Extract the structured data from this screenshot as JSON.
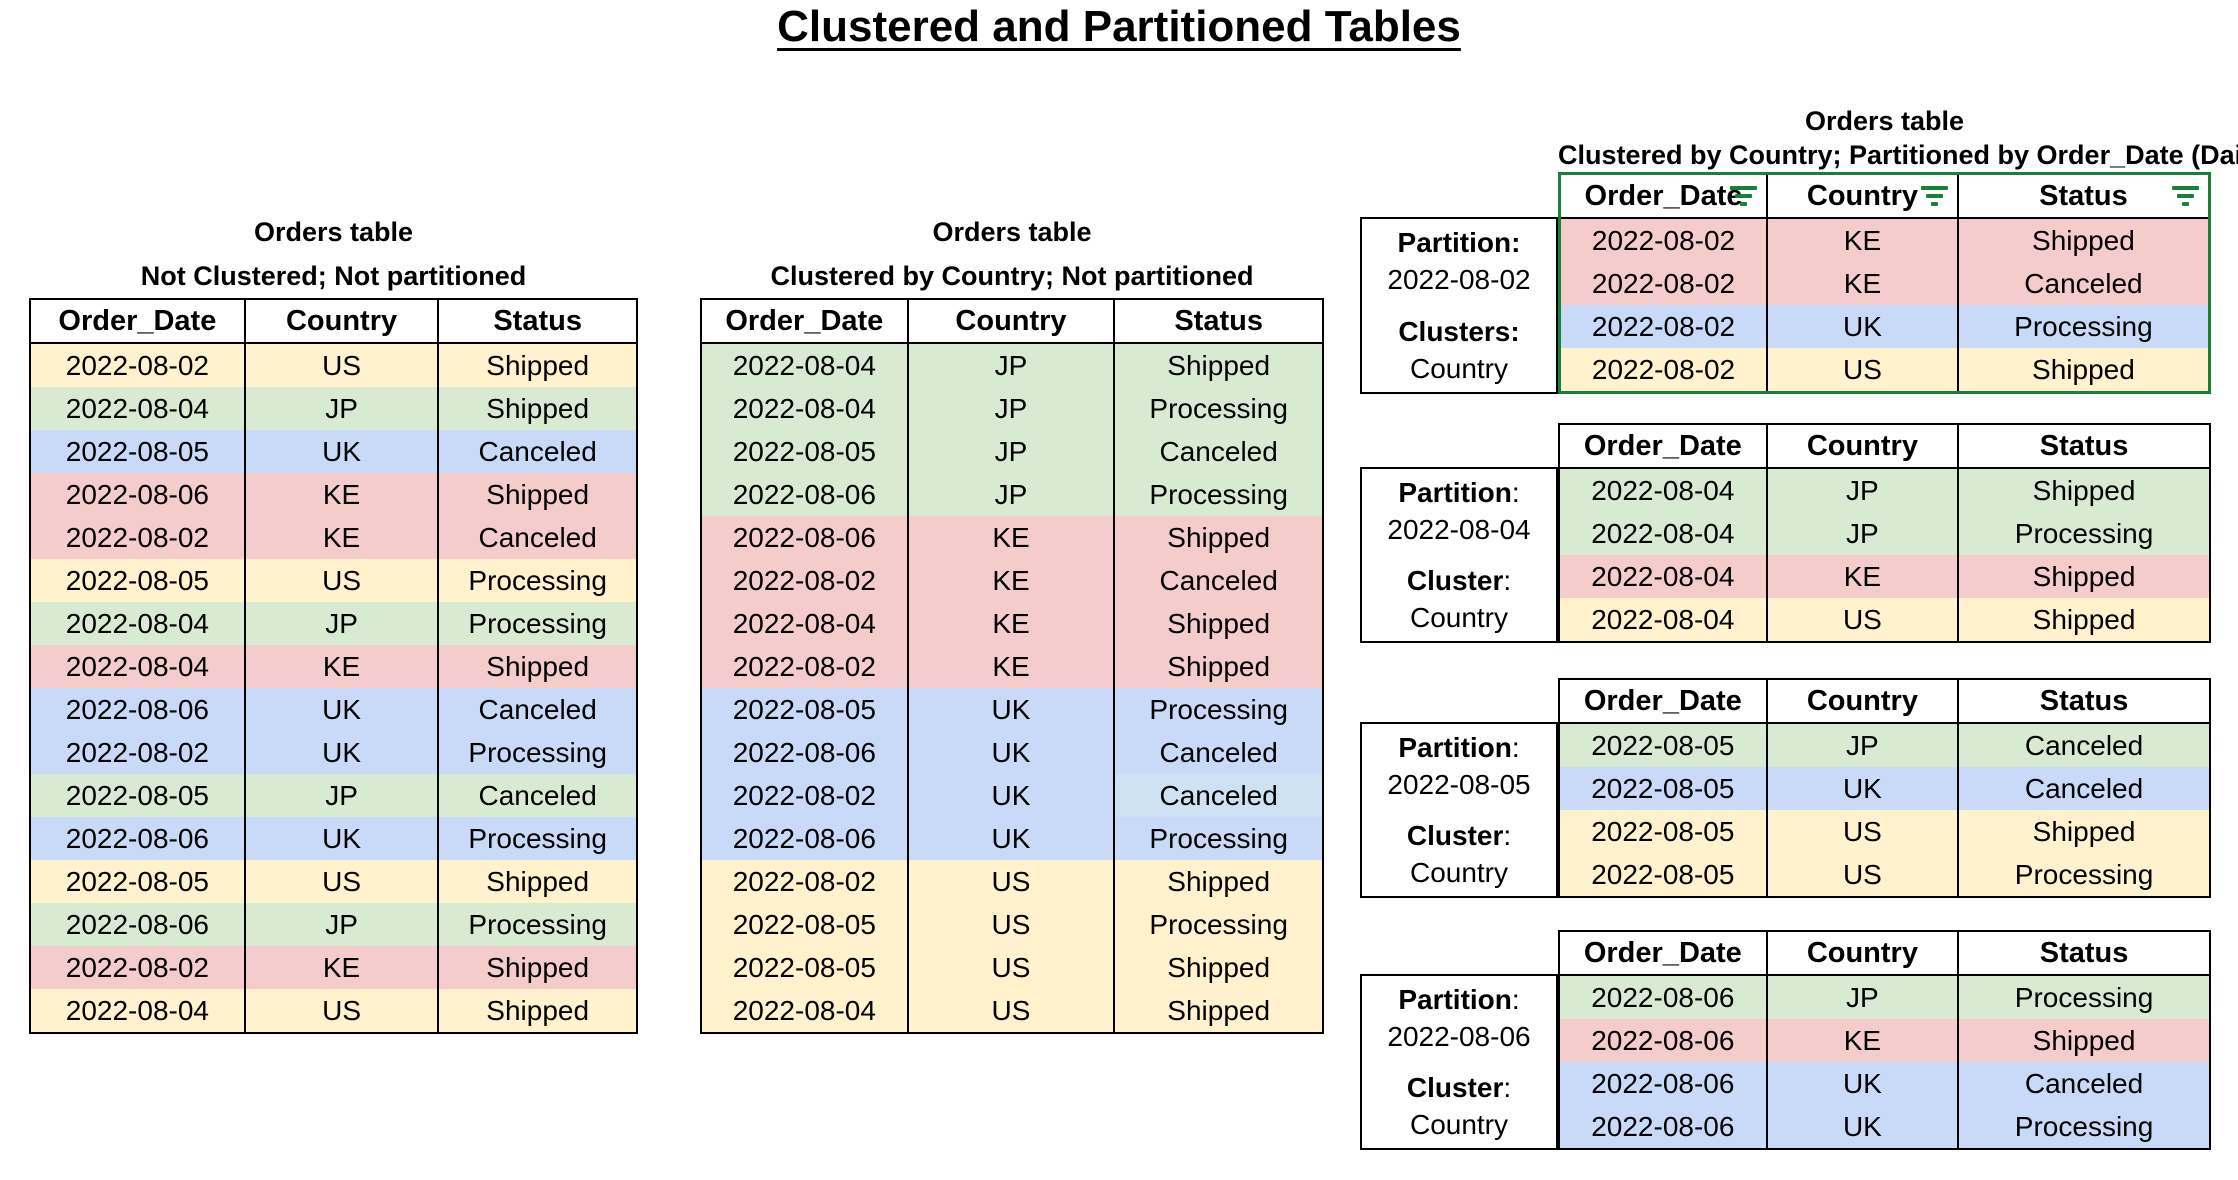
{
  "page_title": "Clustered and Partitioned Tables",
  "colors": {
    "yellow": "#fff2cc",
    "green": "#d9ead3",
    "blue": "#c9daf8",
    "red": "#f4cccc",
    "lightblue": "#cfe2f3",
    "filter_green": "#188038",
    "border_black": "#000000"
  },
  "headers": [
    "Order_Date",
    "Country",
    "Status"
  ],
  "left_table": {
    "title": "Orders table",
    "subtitle": "Not Clustered; Not partitioned",
    "rows": [
      [
        "2022-08-02",
        "US",
        "Shipped",
        "yellow"
      ],
      [
        "2022-08-04",
        "JP",
        "Shipped",
        "green"
      ],
      [
        "2022-08-05",
        "UK",
        "Canceled",
        "blue"
      ],
      [
        "2022-08-06",
        "KE",
        "Shipped",
        "red"
      ],
      [
        "2022-08-02",
        "KE",
        "Canceled",
        "red"
      ],
      [
        "2022-08-05",
        "US",
        "Processing",
        "yellow"
      ],
      [
        "2022-08-04",
        "JP",
        "Processing",
        "green"
      ],
      [
        "2022-08-04",
        "KE",
        "Shipped",
        "red"
      ],
      [
        "2022-08-06",
        "UK",
        "Canceled",
        "blue"
      ],
      [
        "2022-08-02",
        "UK",
        "Processing",
        "blue"
      ],
      [
        "2022-08-05",
        "JP",
        "Canceled",
        "green"
      ],
      [
        "2022-08-06",
        "UK",
        "Processing",
        "blue"
      ],
      [
        "2022-08-05",
        "US",
        "Shipped",
        "yellow"
      ],
      [
        "2022-08-06",
        "JP",
        "Processing",
        "green"
      ],
      [
        "2022-08-02",
        "KE",
        "Shipped",
        "red"
      ],
      [
        "2022-08-04",
        "US",
        "Shipped",
        "yellow"
      ]
    ]
  },
  "middle_table": {
    "title": "Orders table",
    "subtitle": "Clustered by Country; Not partitioned",
    "rows": [
      [
        "2022-08-04",
        "JP",
        "Shipped",
        "green"
      ],
      [
        "2022-08-04",
        "JP",
        "Processing",
        "green"
      ],
      [
        "2022-08-05",
        "JP",
        "Canceled",
        "green"
      ],
      [
        "2022-08-06",
        "JP",
        "Processing",
        "green"
      ],
      [
        "2022-08-06",
        "KE",
        "Shipped",
        "red"
      ],
      [
        "2022-08-02",
        "KE",
        "Canceled",
        "red"
      ],
      [
        "2022-08-04",
        "KE",
        "Shipped",
        "red"
      ],
      [
        "2022-08-02",
        "KE",
        "Shipped",
        "red"
      ],
      [
        "2022-08-05",
        "UK",
        "Processing",
        "blue"
      ],
      [
        "2022-08-06",
        "UK",
        "Canceled",
        "blue"
      ],
      [
        "2022-08-02",
        "UK",
        "Canceled",
        "blue",
        "lightblue"
      ],
      [
        "2022-08-06",
        "UK",
        "Processing",
        "blue"
      ],
      [
        "2022-08-02",
        "US",
        "Shipped",
        "yellow"
      ],
      [
        "2022-08-05",
        "US",
        "Processing",
        "yellow"
      ],
      [
        "2022-08-05",
        "US",
        "Shipped",
        "yellow"
      ],
      [
        "2022-08-04",
        "US",
        "Shipped",
        "yellow"
      ]
    ]
  },
  "right_section": {
    "title": "Orders table",
    "subtitle": "Clustered by Country; Partitioned by Order_Date (Daily)",
    "partitions": [
      {
        "partition_label": "Partition:",
        "partition_label_suffix": "",
        "partition_value": "2022-08-02",
        "cluster_label": "Clusters:",
        "cluster_label_suffix": "",
        "cluster_value": "Country",
        "filtered": true,
        "rows": [
          [
            "2022-08-02",
            "KE",
            "Shipped",
            "red"
          ],
          [
            "2022-08-02",
            "KE",
            "Canceled",
            "red"
          ],
          [
            "2022-08-02",
            "UK",
            "Processing",
            "blue"
          ],
          [
            "2022-08-02",
            "US",
            "Shipped",
            "yellow"
          ]
        ]
      },
      {
        "partition_label": "Partition",
        "partition_label_suffix": ":",
        "partition_value": "2022-08-04",
        "cluster_label": "Cluster",
        "cluster_label_suffix": ":",
        "cluster_value": "Country",
        "filtered": false,
        "rows": [
          [
            "2022-08-04",
            "JP",
            "Shipped",
            "green"
          ],
          [
            "2022-08-04",
            "JP",
            "Processing",
            "green"
          ],
          [
            "2022-08-04",
            "KE",
            "Shipped",
            "red"
          ],
          [
            "2022-08-04",
            "US",
            "Shipped",
            "yellow"
          ]
        ]
      },
      {
        "partition_label": "Partition",
        "partition_label_suffix": ":",
        "partition_value": "2022-08-05",
        "cluster_label": "Cluster",
        "cluster_label_suffix": ":",
        "cluster_value": "Country",
        "filtered": false,
        "rows": [
          [
            "2022-08-05",
            "JP",
            "Canceled",
            "green"
          ],
          [
            "2022-08-05",
            "UK",
            "Canceled",
            "blue"
          ],
          [
            "2022-08-05",
            "US",
            "Shipped",
            "yellow"
          ],
          [
            "2022-08-05",
            "US",
            "Processing",
            "yellow"
          ]
        ]
      },
      {
        "partition_label": "Partition",
        "partition_label_suffix": ":",
        "partition_value": "2022-08-06",
        "cluster_label": "Cluster",
        "cluster_label_suffix": ":",
        "cluster_value": "Country",
        "filtered": false,
        "rows": [
          [
            "2022-08-06",
            "JP",
            "Processing",
            "green"
          ],
          [
            "2022-08-06",
            "KE",
            "Shipped",
            "red"
          ],
          [
            "2022-08-06",
            "UK",
            "Canceled",
            "blue"
          ],
          [
            "2022-08-06",
            "UK",
            "Processing",
            "blue"
          ]
        ]
      }
    ]
  }
}
